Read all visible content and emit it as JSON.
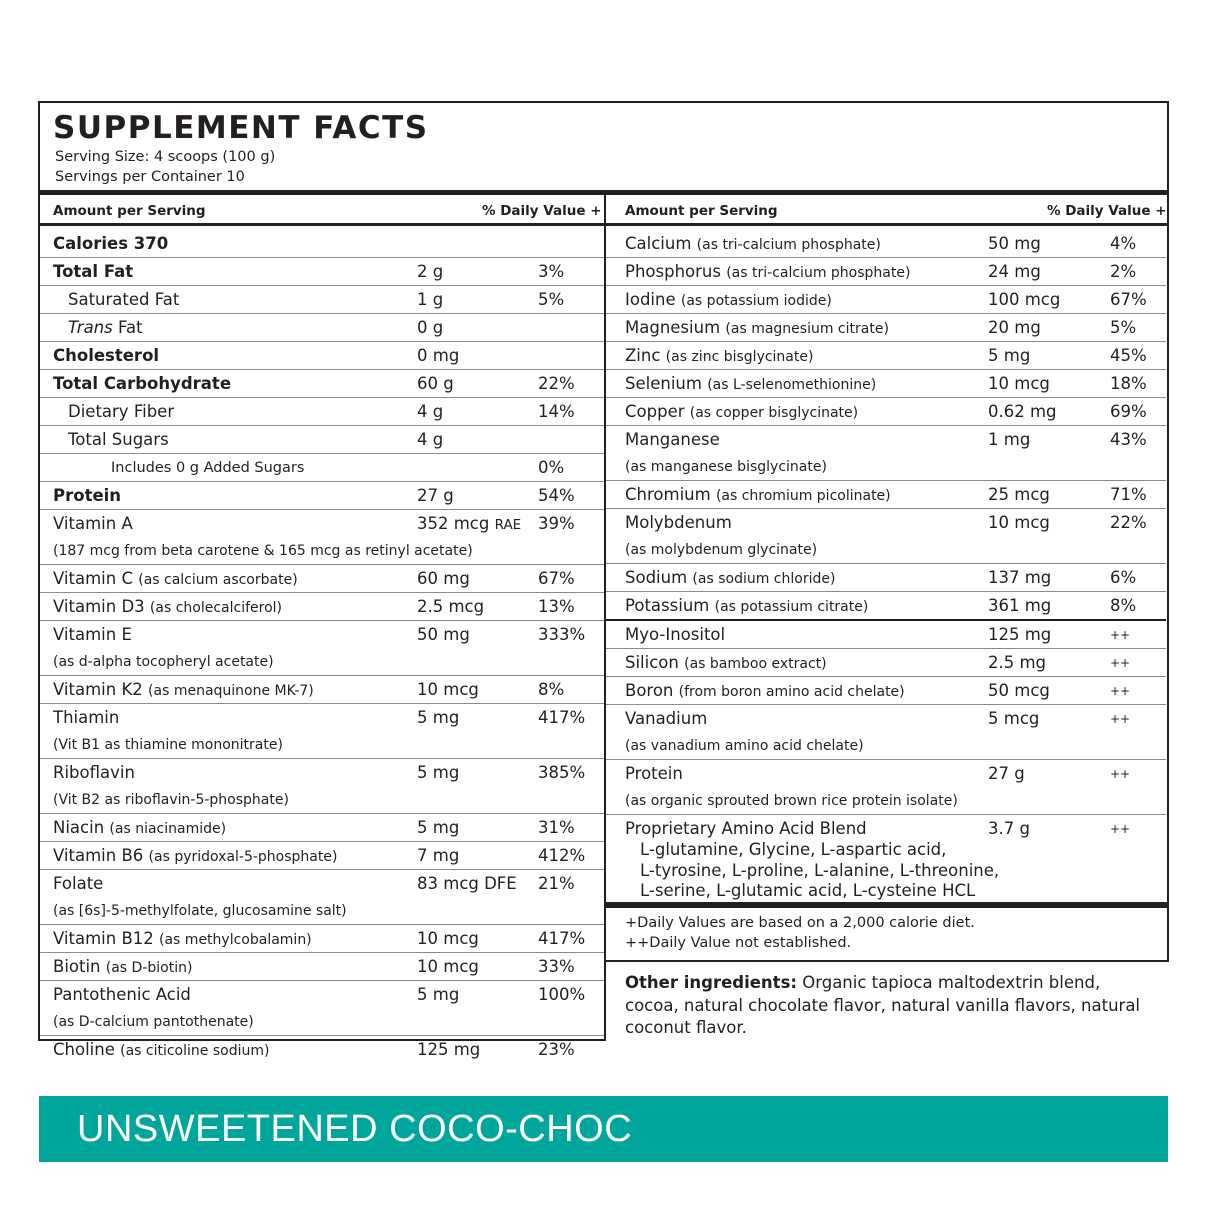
{
  "title": "SUPPLEMENT FACTS",
  "serving_size": "Serving Size: 4 scoops (100 g)",
  "servings_per_container": "Servings per Container 10",
  "header": {
    "amount_label": "Amount per Serving",
    "dv_label": "% Daily Value +"
  },
  "left_rows": [
    {
      "name": "Calories 370",
      "bold": true,
      "amount": "",
      "dv": ""
    },
    {
      "name": "Total Fat",
      "bold": true,
      "amount": "2 g",
      "dv": "3%"
    },
    {
      "name": "Saturated Fat",
      "indent": 1,
      "amount": "1 g",
      "dv": "5%"
    },
    {
      "name_italic": "Trans",
      "name": " Fat",
      "indent": 1,
      "amount": "0 g",
      "dv": ""
    },
    {
      "name": "Cholesterol",
      "bold": true,
      "amount": "0 mg",
      "dv": ""
    },
    {
      "name": "Total Carbohydrate",
      "bold": true,
      "amount": "60 g",
      "dv": "22%"
    },
    {
      "name": "Dietary Fiber",
      "indent": 1,
      "amount": "4 g",
      "dv": "14%"
    },
    {
      "name": "Total Sugars",
      "indent": 1,
      "amount": "4 g",
      "dv": ""
    },
    {
      "name": "Includes 0 g Added Sugars",
      "indent": 2,
      "small": true,
      "amount": "",
      "dv": "0%"
    },
    {
      "name": "Protein",
      "bold": true,
      "amount": "27 g",
      "dv": "54%"
    },
    {
      "name": "Vitamin A",
      "amount": "352 mcg",
      "amount_unit": "RAE",
      "dv": "39%",
      "sub": "(187 mcg from beta carotene & 165 mcg as retinyl acetate)"
    },
    {
      "name": "Vitamin C",
      "source": "(as calcium ascorbate)",
      "amount": "60 mg",
      "dv": "67%"
    },
    {
      "name": "Vitamin D3",
      "source": "(as cholecalciferol)",
      "amount": "2.5 mcg",
      "dv": "13%"
    },
    {
      "name": "Vitamin E",
      "amount": "50 mg",
      "dv": "333%",
      "sub": "(as d-alpha tocopheryl acetate)"
    },
    {
      "name": "Vitamin K2",
      "source": "(as menaquinone MK-7)",
      "amount": "10 mcg",
      "dv": "8%"
    },
    {
      "name": "Thiamin",
      "amount": "5 mg",
      "dv": "417%",
      "sub": "(Vit B1 as thiamine mononitrate)"
    },
    {
      "name": "Riboflavin",
      "amount": "5 mg",
      "dv": "385%",
      "sub": "(Vit B2 as riboflavin-5-phosphate)"
    },
    {
      "name": "Niacin",
      "source": "(as niacinamide)",
      "amount": "5 mg",
      "dv": "31%"
    },
    {
      "name": "Vitamin B6",
      "source": "(as pyridoxal-5-phosphate)",
      "amount": "7 mg",
      "dv": "412%"
    },
    {
      "name": "Folate",
      "amount": "83 mcg DFE",
      "dv": "21%",
      "sub": "(as [6s]-5-methylfolate, glucosamine salt)"
    },
    {
      "name": "Vitamin B12",
      "source": "(as methylcobalamin)",
      "amount": "10 mcg",
      "dv": "417%"
    },
    {
      "name": "Biotin",
      "source": "(as D-biotin)",
      "amount": "10 mcg",
      "dv": "33%"
    },
    {
      "name": "Pantothenic Acid",
      "amount": "5 mg",
      "dv": "100%",
      "sub": "(as D-calcium pantothenate)"
    },
    {
      "name": "Choline",
      "source": "(as citicoline sodium)",
      "amount": "125 mg",
      "dv": "23%",
      "last": true
    }
  ],
  "right_rows": [
    {
      "name": "Calcium",
      "source": "(as tri-calcium phosphate)",
      "amount": "50 mg",
      "dv": "4%"
    },
    {
      "name": "Phosphorus",
      "source": "(as tri-calcium phosphate)",
      "amount": "24 mg",
      "dv": "2%"
    },
    {
      "name": "Iodine",
      "source": "(as potassium iodide)",
      "amount": "100 mcg",
      "dv": "67%"
    },
    {
      "name": "Magnesium",
      "source": "(as magnesium citrate)",
      "amount": "20 mg",
      "dv": "5%"
    },
    {
      "name": "Zinc",
      "source": "(as zinc bisglycinate)",
      "amount": "5 mg",
      "dv": "45%"
    },
    {
      "name": "Selenium",
      "source": "(as L-selenomethionine)",
      "amount": "10 mcg",
      "dv": "18%"
    },
    {
      "name": "Copper",
      "source": "(as copper bisglycinate)",
      "amount": "0.62 mg",
      "dv": "69%"
    },
    {
      "name": "Manganese",
      "amount": "1 mg",
      "dv": "43%",
      "sub": "(as manganese bisglycinate)"
    },
    {
      "name": "Chromium",
      "source": "(as chromium picolinate)",
      "amount": "25 mcg",
      "dv": "71%"
    },
    {
      "name": "Molybdenum",
      "amount": "10 mcg",
      "dv": "22%",
      "sub": "(as molybdenum glycinate)"
    },
    {
      "name": "Sodium",
      "source": "(as sodium chloride)",
      "amount": "137 mg",
      "dv": "6%"
    },
    {
      "name": "Potassium",
      "source": "(as potassium citrate)",
      "amount": "361 mg",
      "dv": "8%",
      "thick": true
    },
    {
      "name": "Myo-Inositol",
      "amount": "125 mg",
      "dv": "++"
    },
    {
      "name": "Silicon",
      "source": "(as bamboo extract)",
      "amount": "2.5 mg",
      "dv": "++"
    },
    {
      "name": "Boron",
      "source": "(from boron amino acid chelate)",
      "amount": "50 mcg",
      "dv": "++"
    },
    {
      "name": "Vanadium",
      "amount": "5 mcg",
      "dv": "++",
      "sub": "(as vanadium amino acid chelate)"
    },
    {
      "name": "Protein",
      "amount": "27 g",
      "dv": "++",
      "sub": "(as organic sprouted brown rice protein isolate)"
    },
    {
      "name": "Proprietary Amino Acid Blend",
      "amount": "3.7 g",
      "dv": "++",
      "blend": [
        "L-glutamine, Glycine, L-aspartic acid,",
        "L-tyrosine, L-proline, L-alanine, L-threonine,",
        "L-serine, L-glutamic acid, L-cysteine HCL"
      ],
      "last": true
    }
  ],
  "footnotes": [
    "+Daily Values are based on a 2,000 calorie diet.",
    "++Daily Value not established."
  ],
  "other_ingredients": {
    "label": "Other ingredients:",
    "text": " Organic tapioca maltodextrin blend, cocoa, natural chocolate flavor, natural vanilla flavors, natural coconut flavor."
  },
  "banner": {
    "text": "UNSWEETENED COCO-CHOC",
    "color": "#00a69c"
  }
}
